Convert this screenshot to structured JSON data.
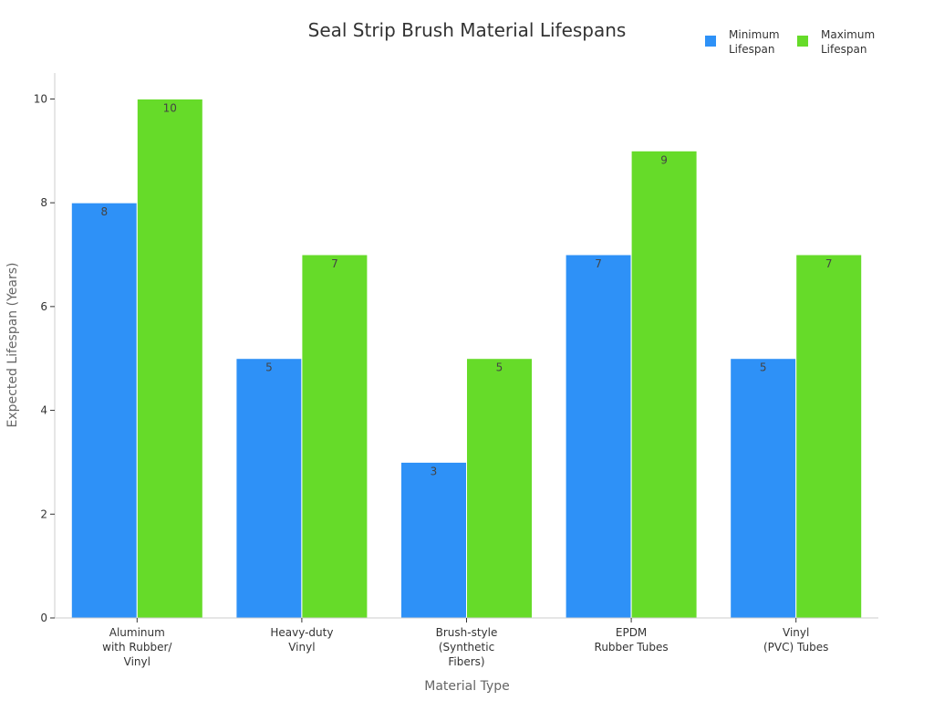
{
  "chart_data": {
    "type": "bar",
    "title": "Seal Strip Brush Material Lifespans",
    "xlabel": "Material Type",
    "ylabel": "Expected Lifespan (Years)",
    "ylim": [
      0,
      10.5
    ],
    "yticks": [
      0,
      2,
      4,
      6,
      8,
      10
    ],
    "grid": false,
    "legend_position": "top-right",
    "categories": [
      [
        "Aluminum",
        "with Rubber/",
        "Vinyl"
      ],
      [
        "Heavy-duty",
        "Vinyl"
      ],
      [
        "Brush-style",
        "(Synthetic",
        "Fibers)"
      ],
      [
        "EPDM",
        "Rubber Tubes"
      ],
      [
        "Vinyl",
        "(PVC) Tubes"
      ]
    ],
    "series": [
      {
        "name": [
          "Minimum",
          "Lifespan"
        ],
        "color": "#2E91F7",
        "values": [
          8,
          5,
          3,
          7,
          5
        ]
      },
      {
        "name": [
          "Maximum",
          "Lifespan"
        ],
        "color": "#66DB29",
        "values": [
          10,
          7,
          5,
          9,
          7
        ]
      }
    ]
  }
}
